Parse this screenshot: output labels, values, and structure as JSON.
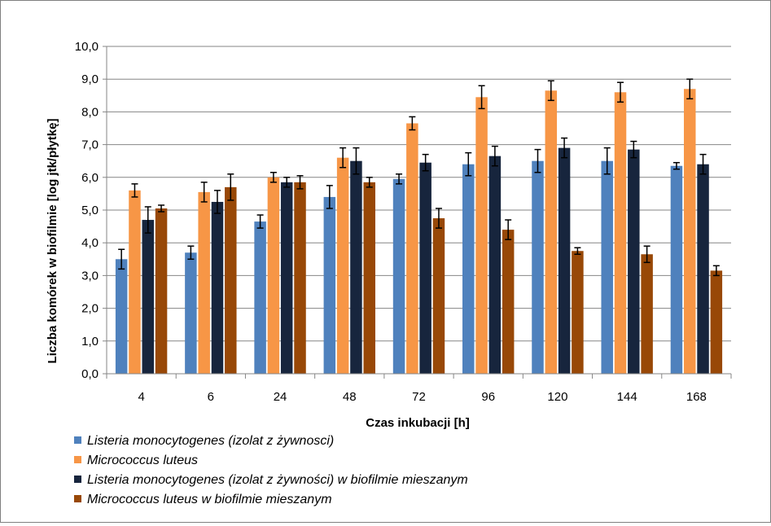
{
  "chart_data": {
    "type": "bar",
    "xlabel": "Czas inkubacji [h]",
    "ylabel": "Liczba komórek w biofilmie [log jtk/płytkę]",
    "categories": [
      "4",
      "6",
      "24",
      "48",
      "72",
      "96",
      "120",
      "144",
      "168"
    ],
    "ylim": [
      0,
      10
    ],
    "ytick_step": 1,
    "ytick_labels": [
      "0,0",
      "1,0",
      "2,0",
      "3,0",
      "4,0",
      "5,0",
      "6,0",
      "7,0",
      "8,0",
      "9,0",
      "10,0"
    ],
    "grid": true,
    "legend_position": "bottom",
    "series": [
      {
        "name": "Listeria monocytogenes (izolat z żywnosci)",
        "color": "#4F81BD",
        "values": [
          3.5,
          3.7,
          4.65,
          5.4,
          5.95,
          6.4,
          6.5,
          6.5,
          6.35
        ],
        "errors": [
          0.3,
          0.2,
          0.2,
          0.35,
          0.15,
          0.35,
          0.35,
          0.4,
          0.1
        ]
      },
      {
        "name": "Micrococcus luteus",
        "color": "#F79646",
        "values": [
          5.6,
          5.55,
          6.0,
          6.6,
          7.65,
          8.45,
          8.65,
          8.6,
          8.7
        ],
        "errors": [
          0.2,
          0.3,
          0.15,
          0.3,
          0.2,
          0.35,
          0.3,
          0.3,
          0.3
        ]
      },
      {
        "name": "Listeria monocytogenes (izolat z żywności) w biofilmie mieszanym",
        "color": "#17253D",
        "values": [
          4.7,
          5.25,
          5.85,
          6.5,
          6.45,
          6.65,
          6.9,
          6.85,
          6.4
        ],
        "errors": [
          0.4,
          0.35,
          0.15,
          0.4,
          0.25,
          0.3,
          0.3,
          0.25,
          0.3
        ]
      },
      {
        "name": "Micrococcus luteus w biofilmie mieszanym",
        "color": "#984807",
        "values": [
          5.05,
          5.7,
          5.85,
          5.85,
          4.75,
          4.4,
          3.75,
          3.65,
          3.15
        ],
        "errors": [
          0.1,
          0.4,
          0.2,
          0.15,
          0.3,
          0.3,
          0.1,
          0.25,
          0.15
        ]
      }
    ]
  }
}
